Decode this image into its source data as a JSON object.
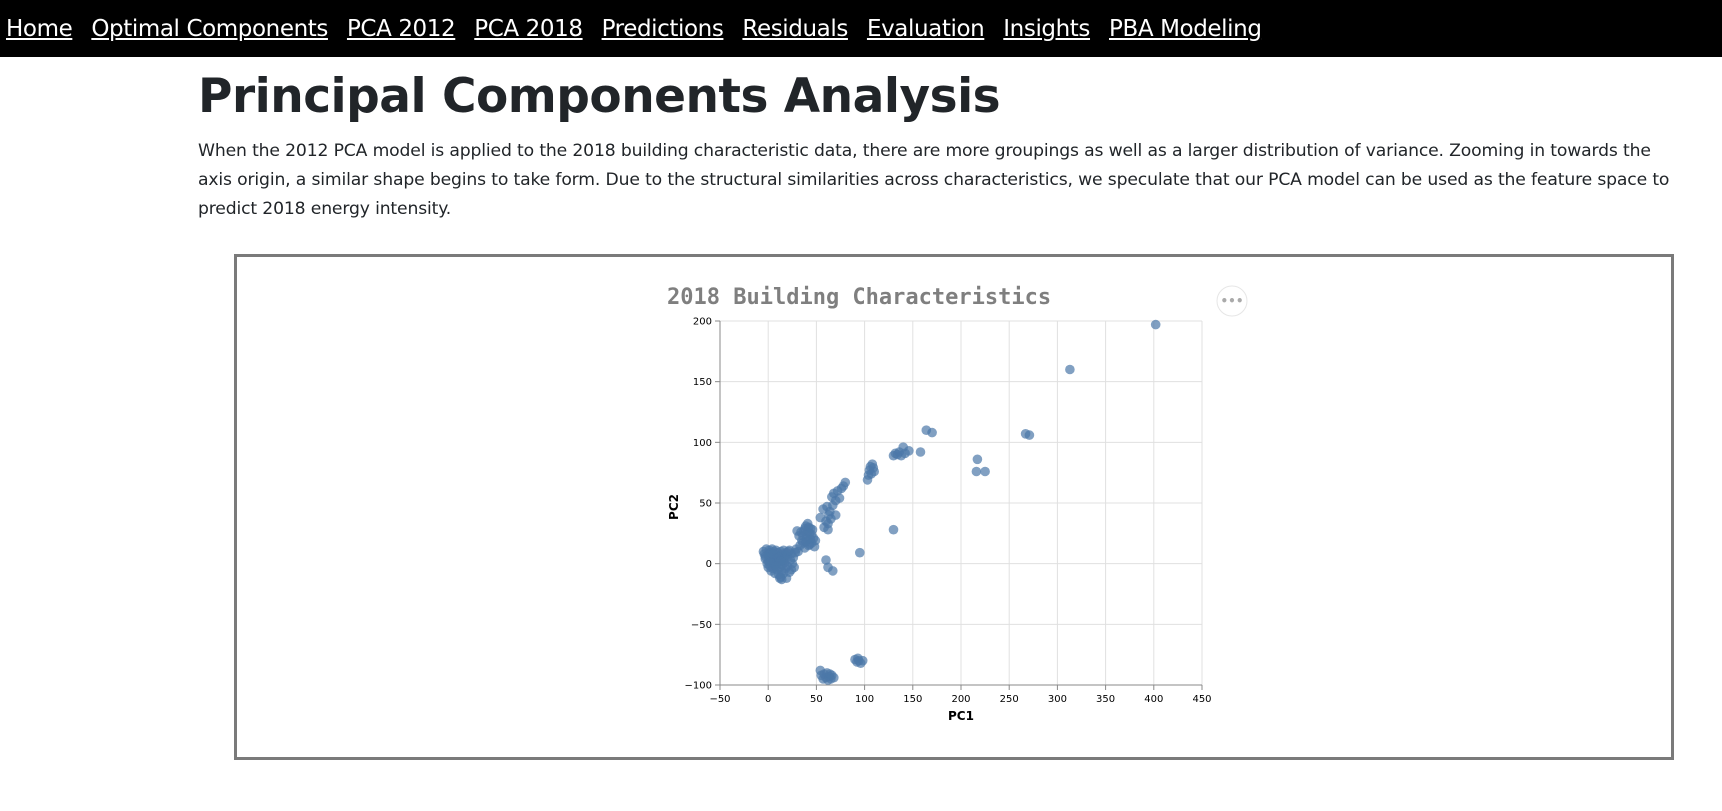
{
  "nav": {
    "items": [
      {
        "label": "Home"
      },
      {
        "label": "Optimal Components"
      },
      {
        "label": "PCA 2012"
      },
      {
        "label": "PCA 2018"
      },
      {
        "label": "Predictions"
      },
      {
        "label": "Residuals"
      },
      {
        "label": "Evaluation"
      },
      {
        "label": "Insights"
      },
      {
        "label": "PBA Modeling"
      }
    ]
  },
  "page": {
    "title": "Principal Components Analysis",
    "intro": "When the 2012 PCA model is applied to the 2018 building characteristic data, there are more groupings as well as a larger distribution of variance. Zooming in towards the axis origin, a similar shape begins to take form. Due to the structural similarities across characteristics, we speculate that our PCA model can be used as the feature space to predict 2018 energy intensity."
  },
  "chart_data": {
    "type": "scatter",
    "title": "2018 Building Characteristics",
    "xlabel": "PC1",
    "ylabel": "PC2",
    "xlim": [
      -50,
      450
    ],
    "ylim": [
      -100,
      200
    ],
    "xticks": [
      -50,
      0,
      50,
      100,
      150,
      200,
      250,
      300,
      350,
      400,
      450
    ],
    "yticks": [
      -100,
      -50,
      0,
      50,
      100,
      150,
      200
    ],
    "xtick_labels": [
      "−50",
      "0",
      "50",
      "100",
      "150",
      "200",
      "250",
      "300",
      "350",
      "400",
      "450"
    ],
    "ytick_labels": [
      "−100",
      "−50",
      "0",
      "50",
      "100",
      "150",
      "200"
    ],
    "grid": true,
    "point_color": "#4c78a8",
    "series": [
      {
        "points": [
          [
            -5,
            10
          ],
          [
            -4,
            8
          ],
          [
            -3,
            4
          ],
          [
            -2,
            12
          ],
          [
            -1,
            0
          ],
          [
            0,
            2
          ],
          [
            0,
            -3
          ],
          [
            1,
            6
          ],
          [
            1,
            11
          ],
          [
            2,
            -2
          ],
          [
            2,
            9
          ],
          [
            3,
            3
          ],
          [
            3,
            -6
          ],
          [
            4,
            7
          ],
          [
            4,
            12
          ],
          [
            5,
            1
          ],
          [
            5,
            -4
          ],
          [
            6,
            5
          ],
          [
            6,
            10
          ],
          [
            7,
            -1
          ],
          [
            7,
            -8
          ],
          [
            8,
            4
          ],
          [
            8,
            11
          ],
          [
            9,
            0
          ],
          [
            9,
            -5
          ],
          [
            10,
            6
          ],
          [
            10,
            9
          ],
          [
            11,
            -9
          ],
          [
            11,
            2
          ],
          [
            12,
            7
          ],
          [
            12,
            -3
          ],
          [
            13,
            10
          ],
          [
            13,
            -11
          ],
          [
            14,
            4
          ],
          [
            14,
            -6
          ],
          [
            15,
            8
          ],
          [
            15,
            -1
          ],
          [
            16,
            11
          ],
          [
            16,
            -8
          ],
          [
            17,
            5
          ],
          [
            17,
            1
          ],
          [
            18,
            -4
          ],
          [
            19,
            9
          ],
          [
            20,
            -2
          ],
          [
            20,
            6
          ],
          [
            21,
            10
          ],
          [
            22,
            -7
          ],
          [
            23,
            3
          ],
          [
            24,
            8
          ],
          [
            25,
            0
          ],
          [
            26,
            5
          ],
          [
            27,
            -3
          ],
          [
            28,
            9
          ],
          [
            19,
            -12
          ],
          [
            14,
            -13
          ],
          [
            12,
            -12
          ],
          [
            16,
            3
          ],
          [
            18,
            7
          ],
          [
            22,
            11
          ],
          [
            24,
            -5
          ],
          [
            -3,
            6
          ],
          [
            0,
            7
          ],
          [
            3,
            9
          ],
          [
            6,
            1
          ],
          [
            9,
            4
          ],
          [
            2,
            1
          ],
          [
            5,
            8
          ],
          [
            8,
            -2
          ],
          [
            11,
            5
          ],
          [
            13,
            2
          ],
          [
            29,
            12
          ],
          [
            31,
            10
          ],
          [
            33,
            15
          ],
          [
            35,
            19
          ],
          [
            36,
            23
          ],
          [
            37,
            27
          ],
          [
            38,
            13
          ],
          [
            39,
            18
          ],
          [
            40,
            22
          ],
          [
            41,
            26
          ],
          [
            42,
            30
          ],
          [
            43,
            16
          ],
          [
            44,
            20
          ],
          [
            45,
            24
          ],
          [
            46,
            28
          ],
          [
            47,
            21
          ],
          [
            48,
            14
          ],
          [
            49,
            19
          ],
          [
            38,
            29
          ],
          [
            32,
            23
          ],
          [
            34,
            26
          ],
          [
            41,
            33
          ],
          [
            36,
            17
          ],
          [
            43,
            25
          ],
          [
            45,
            17
          ],
          [
            30,
            27
          ],
          [
            39,
            31
          ],
          [
            44,
            29
          ],
          [
            42,
            15
          ],
          [
            40,
            20
          ],
          [
            54,
            38
          ],
          [
            57,
            45
          ],
          [
            60,
            35
          ],
          [
            61,
            47
          ],
          [
            62,
            33
          ],
          [
            63,
            40
          ],
          [
            64,
            43
          ],
          [
            65,
            37
          ],
          [
            66,
            55
          ],
          [
            68,
            58
          ],
          [
            70,
            52
          ],
          [
            72,
            60
          ],
          [
            74,
            54
          ],
          [
            76,
            62
          ],
          [
            78,
            64
          ],
          [
            80,
            67
          ],
          [
            58,
            30
          ],
          [
            62,
            28
          ],
          [
            70,
            40
          ],
          [
            67,
            48
          ],
          [
            103,
            69
          ],
          [
            104,
            73
          ],
          [
            105,
            77
          ],
          [
            106,
            80
          ],
          [
            107,
            74
          ],
          [
            108,
            82
          ],
          [
            109,
            79
          ],
          [
            110,
            76
          ],
          [
            130,
            89
          ],
          [
            132,
            91
          ],
          [
            134,
            90
          ],
          [
            136,
            92
          ],
          [
            138,
            89
          ],
          [
            140,
            96
          ],
          [
            142,
            91
          ],
          [
            146,
            93
          ],
          [
            158,
            92
          ],
          [
            164,
            110
          ],
          [
            170,
            108
          ],
          [
            217,
            86
          ],
          [
            216,
            76
          ],
          [
            225,
            76
          ],
          [
            267,
            107
          ],
          [
            271,
            106
          ],
          [
            313,
            160
          ],
          [
            402,
            197
          ],
          [
            130,
            28
          ],
          [
            95,
            9
          ],
          [
            60,
            3
          ],
          [
            62,
            -3
          ],
          [
            67,
            -6
          ],
          [
            54,
            -88
          ],
          [
            55,
            -92
          ],
          [
            57,
            -95
          ],
          [
            58,
            -91
          ],
          [
            60,
            -94
          ],
          [
            61,
            -90
          ],
          [
            62,
            -96
          ],
          [
            63,
            -93
          ],
          [
            64,
            -91
          ],
          [
            65,
            -95
          ],
          [
            66,
            -92
          ],
          [
            68,
            -94
          ],
          [
            90,
            -79
          ],
          [
            92,
            -81
          ],
          [
            94,
            -80
          ],
          [
            96,
            -82
          ],
          [
            98,
            -80
          ],
          [
            93,
            -78
          ]
        ]
      }
    ]
  }
}
